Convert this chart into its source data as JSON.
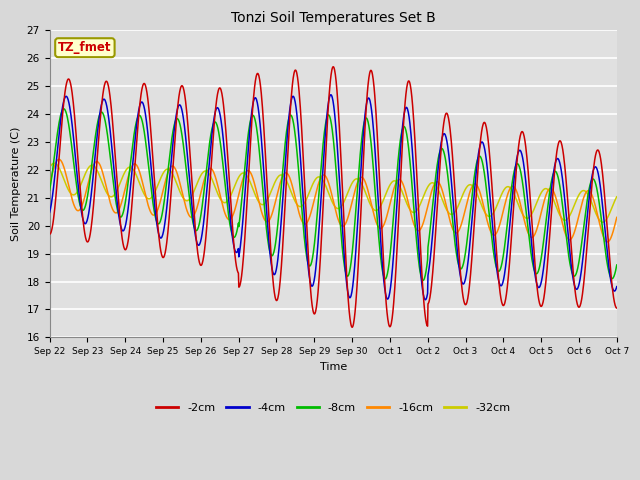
{
  "title": "Tonzi Soil Temperatures Set B",
  "xlabel": "Time",
  "ylabel": "Soil Temperature (C)",
  "ylim": [
    16.0,
    27.0
  ],
  "yticks": [
    16.0,
    17.0,
    18.0,
    19.0,
    20.0,
    21.0,
    22.0,
    23.0,
    24.0,
    25.0,
    26.0,
    27.0
  ],
  "xtick_labels": [
    "Sep 22",
    "Sep 23",
    "Sep 24",
    "Sep 25",
    "Sep 26",
    "Sep 27",
    "Sep 28",
    "Sep 29",
    "Sep 30",
    "Oct 1",
    "Oct 2",
    "Oct 3",
    "Oct 4",
    "Oct 5",
    "Oct 6",
    "Oct 7"
  ],
  "series_colors": [
    "#cc0000",
    "#0000cc",
    "#00bb00",
    "#ff8800",
    "#cccc00"
  ],
  "series_labels": [
    "-2cm",
    "-4cm",
    "-8cm",
    "-16cm",
    "-32cm"
  ],
  "legend_label": "TZ_fmet",
  "legend_bg": "#ffffcc",
  "legend_border": "#999900",
  "legend_text_color": "#cc0000",
  "plot_bg_color": "#e0e0e0",
  "fig_bg_color": "#d8d8d8",
  "grid_color": "#ffffff"
}
